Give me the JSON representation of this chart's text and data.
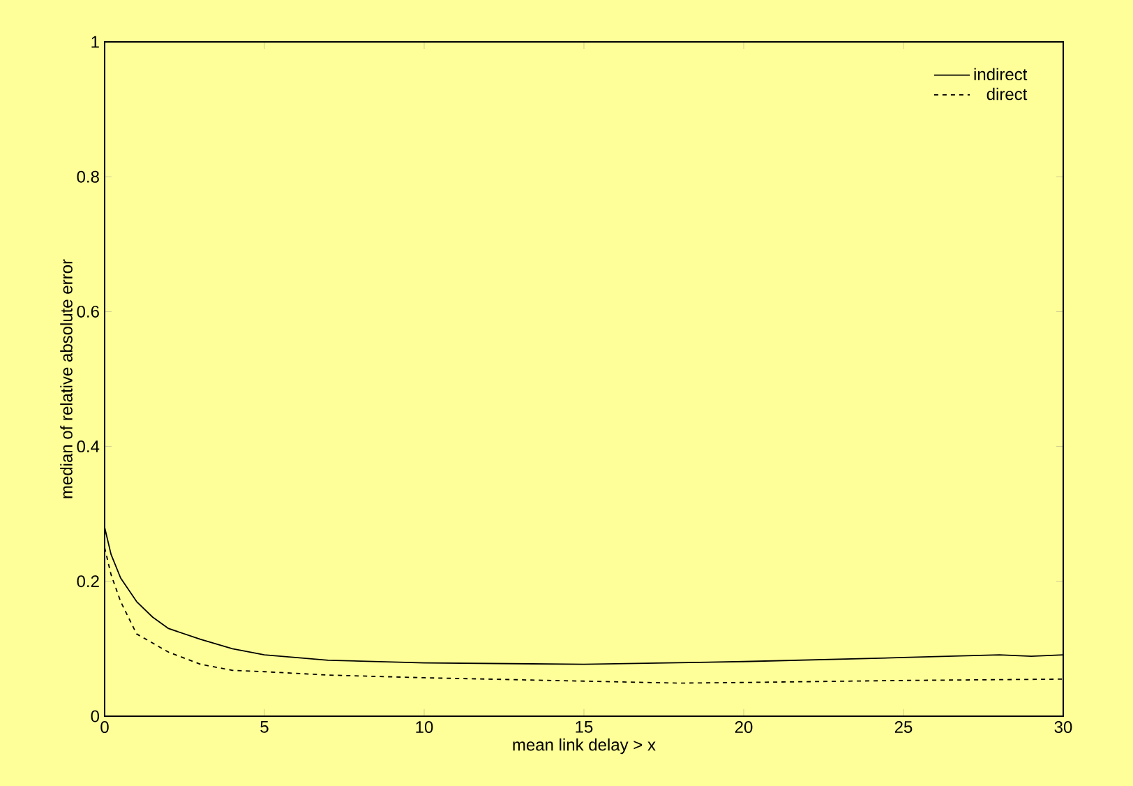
{
  "chart_data": {
    "type": "line",
    "xlabel": "mean link delay > x",
    "ylabel": "median of relative absolute error",
    "xlim": [
      0,
      30
    ],
    "ylim": [
      0,
      1
    ],
    "xticks": [
      0,
      5,
      10,
      15,
      20,
      25,
      30
    ],
    "yticks": [
      0,
      0.2,
      0.4,
      0.6,
      0.8,
      1
    ],
    "legend": "top right",
    "grid": false,
    "marker": "none",
    "series": [
      {
        "name": "indirect",
        "color": "#000000",
        "line_style": "solid",
        "x": [
          0,
          0.2,
          0.5,
          1,
          1.5,
          2,
          3,
          4,
          5,
          7,
          10,
          15,
          20,
          25,
          28,
          29,
          30
        ],
        "values": [
          0.28,
          0.24,
          0.205,
          0.17,
          0.147,
          0.13,
          0.114,
          0.1,
          0.091,
          0.083,
          0.079,
          0.077,
          0.081,
          0.087,
          0.091,
          0.089,
          0.091
        ]
      },
      {
        "name": "direct",
        "color": "#000000",
        "line_style": "dashed",
        "x": [
          0,
          0.2,
          0.5,
          1,
          2,
          3,
          4,
          5,
          7,
          10,
          15,
          18,
          20,
          25,
          30
        ],
        "values": [
          0.25,
          0.21,
          0.17,
          0.122,
          0.095,
          0.077,
          0.068,
          0.066,
          0.061,
          0.057,
          0.052,
          0.049,
          0.05,
          0.053,
          0.055
        ]
      }
    ]
  }
}
